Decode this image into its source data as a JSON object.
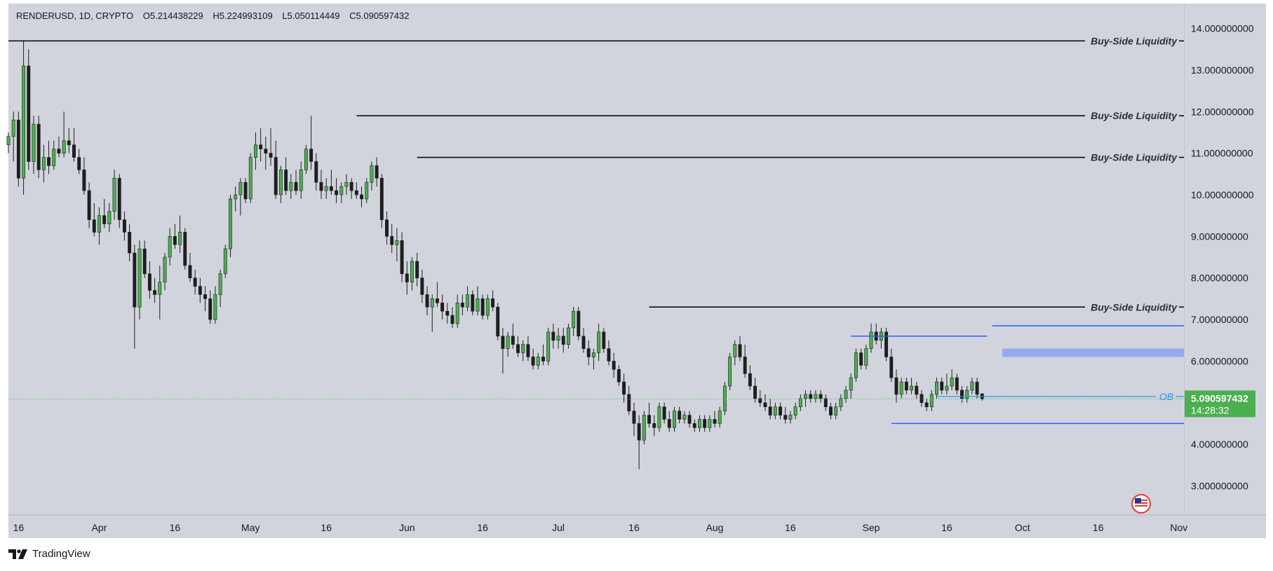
{
  "header": {
    "symbol": "RENDERUSD, 1D, CRYPTO",
    "open": "O5.214438229",
    "high": "H5.224993109",
    "low": "L5.050114449",
    "close": "C5.090597432"
  },
  "price_tag": {
    "price": "5.090597432",
    "countdown": "14:28:32"
  },
  "footer": {
    "brand": "TradingView"
  },
  "colors": {
    "background": "#d1d4dc",
    "up": "#4caf50",
    "down": "#1e1e1e",
    "liquidity": "#000000",
    "range": "#2962ff",
    "ob": "#2196f3",
    "order_block": "#8fa3ef",
    "price_tag": "#4caf50"
  },
  "chart_data": {
    "type": "candlestick",
    "y_axis": {
      "min": 2.3,
      "max": 14.6,
      "ticks": [
        3,
        4,
        5,
        6,
        7,
        8,
        9,
        10,
        11,
        12,
        13,
        14
      ],
      "tick_labels": [
        "3.000000000",
        "4.000000000",
        "5.000000000",
        "6.000000000",
        "7.000000000",
        "8.000000000",
        "9.000000000",
        "10.000000000",
        "11.000000000",
        "12.000000000",
        "13.000000000",
        "14.000000000"
      ]
    },
    "x_axis": {
      "start": "2024-03-14",
      "end": "2024-11-02",
      "ticks": [
        {
          "date": "2024-03-16",
          "label": "16"
        },
        {
          "date": "2024-04-01",
          "label": "Apr"
        },
        {
          "date": "2024-04-16",
          "label": "16"
        },
        {
          "date": "2024-05-01",
          "label": "May"
        },
        {
          "date": "2024-05-16",
          "label": "16"
        },
        {
          "date": "2024-06-01",
          "label": "Jun"
        },
        {
          "date": "2024-06-16",
          "label": "16"
        },
        {
          "date": "2024-07-01",
          "label": "Jul"
        },
        {
          "date": "2024-07-16",
          "label": "16"
        },
        {
          "date": "2024-08-01",
          "label": "Aug"
        },
        {
          "date": "2024-08-16",
          "label": "16"
        },
        {
          "date": "2024-09-01",
          "label": "Sep"
        },
        {
          "date": "2024-09-16",
          "label": "16"
        },
        {
          "date": "2024-10-01",
          "label": "Oct"
        },
        {
          "date": "2024-10-16",
          "label": "16"
        },
        {
          "date": "2024-11-01",
          "label": "Nov"
        }
      ]
    },
    "first_candle_date": "2024-03-14",
    "last_price": 5.090597432,
    "candles": [
      [
        11.2,
        11.5,
        11.0,
        11.4
      ],
      [
        11.4,
        12.0,
        10.8,
        11.8
      ],
      [
        11.8,
        12.0,
        10.2,
        10.4
      ],
      [
        10.4,
        13.7,
        10.0,
        13.1
      ],
      [
        13.1,
        13.5,
        10.6,
        10.8
      ],
      [
        10.8,
        11.9,
        10.5,
        11.7
      ],
      [
        11.7,
        11.9,
        10.4,
        10.6
      ],
      [
        10.6,
        11.2,
        10.3,
        10.9
      ],
      [
        10.9,
        11.3,
        10.5,
        10.7
      ],
      [
        10.7,
        11.3,
        10.6,
        11.1
      ],
      [
        11.1,
        11.4,
        10.9,
        11.0
      ],
      [
        11.0,
        12.0,
        10.9,
        11.3
      ],
      [
        11.3,
        11.6,
        11.0,
        11.2
      ],
      [
        11.2,
        11.6,
        10.8,
        10.9
      ],
      [
        10.9,
        11.1,
        10.5,
        10.6
      ],
      [
        10.6,
        10.9,
        10.0,
        10.1
      ],
      [
        10.1,
        10.3,
        9.2,
        9.4
      ],
      [
        9.4,
        9.8,
        9.0,
        9.1
      ],
      [
        9.1,
        9.7,
        8.8,
        9.5
      ],
      [
        9.5,
        9.9,
        9.2,
        9.3
      ],
      [
        9.3,
        9.8,
        9.1,
        9.6
      ],
      [
        9.6,
        10.6,
        9.4,
        10.4
      ],
      [
        10.4,
        10.5,
        9.2,
        9.4
      ],
      [
        9.4,
        9.6,
        8.9,
        9.1
      ],
      [
        9.1,
        9.3,
        8.4,
        8.6
      ],
      [
        8.6,
        8.8,
        6.3,
        7.3
      ],
      [
        7.3,
        8.9,
        7.0,
        8.7
      ],
      [
        8.7,
        8.9,
        8.0,
        8.1
      ],
      [
        8.1,
        8.4,
        7.5,
        7.7
      ],
      [
        7.7,
        8.0,
        7.4,
        7.6
      ],
      [
        7.6,
        8.3,
        7.0,
        7.9
      ],
      [
        7.9,
        8.6,
        7.7,
        8.5
      ],
      [
        8.5,
        9.2,
        8.3,
        9.0
      ],
      [
        9.0,
        9.3,
        8.7,
        8.8
      ],
      [
        8.8,
        9.5,
        8.6,
        9.1
      ],
      [
        9.1,
        9.2,
        8.2,
        8.3
      ],
      [
        8.3,
        8.6,
        7.9,
        8.0
      ],
      [
        8.0,
        8.2,
        7.6,
        7.8
      ],
      [
        7.8,
        8.0,
        7.4,
        7.6
      ],
      [
        7.6,
        7.8,
        7.2,
        7.5
      ],
      [
        7.5,
        7.7,
        6.9,
        7.0
      ],
      [
        7.0,
        7.8,
        6.9,
        7.6
      ],
      [
        7.6,
        8.2,
        7.3,
        8.1
      ],
      [
        8.1,
        8.8,
        8.0,
        8.7
      ],
      [
        8.7,
        10.0,
        8.5,
        9.9
      ],
      [
        9.9,
        10.2,
        9.6,
        10.0
      ],
      [
        10.0,
        10.4,
        9.5,
        10.3
      ],
      [
        10.3,
        10.4,
        9.8,
        9.9
      ],
      [
        9.9,
        11.0,
        9.8,
        10.9
      ],
      [
        10.9,
        11.5,
        10.6,
        11.2
      ],
      [
        11.2,
        11.6,
        10.8,
        11.1
      ],
      [
        11.1,
        11.4,
        10.6,
        11.0
      ],
      [
        11.0,
        11.6,
        10.7,
        10.9
      ],
      [
        10.9,
        11.3,
        9.9,
        10.0
      ],
      [
        10.0,
        10.7,
        9.8,
        10.6
      ],
      [
        10.6,
        10.9,
        10.0,
        10.1
      ],
      [
        10.1,
        10.5,
        9.9,
        10.3
      ],
      [
        10.3,
        10.6,
        10.0,
        10.1
      ],
      [
        10.1,
        10.8,
        9.9,
        10.6
      ],
      [
        10.6,
        11.2,
        10.5,
        11.1
      ],
      [
        11.1,
        11.9,
        10.6,
        10.8
      ],
      [
        10.8,
        11.0,
        10.1,
        10.3
      ],
      [
        10.3,
        10.6,
        9.9,
        10.1
      ],
      [
        10.1,
        10.4,
        9.9,
        10.2
      ],
      [
        10.2,
        10.6,
        10.0,
        10.1
      ],
      [
        10.1,
        10.4,
        9.8,
        10.0
      ],
      [
        10.0,
        10.3,
        9.8,
        10.2
      ],
      [
        10.2,
        10.5,
        10.0,
        10.3
      ],
      [
        10.3,
        10.4,
        9.9,
        10.1
      ],
      [
        10.1,
        10.3,
        9.9,
        10.0
      ],
      [
        10.0,
        10.2,
        9.7,
        9.9
      ],
      [
        9.9,
        10.4,
        9.8,
        10.3
      ],
      [
        10.3,
        10.8,
        10.1,
        10.7
      ],
      [
        10.7,
        10.9,
        10.2,
        10.4
      ],
      [
        10.4,
        10.5,
        9.2,
        9.4
      ],
      [
        9.4,
        9.6,
        8.8,
        9.0
      ],
      [
        9.0,
        9.3,
        8.6,
        8.8
      ],
      [
        8.8,
        9.2,
        8.4,
        8.9
      ],
      [
        8.9,
        9.1,
        7.9,
        8.1
      ],
      [
        8.1,
        8.4,
        7.6,
        7.9
      ],
      [
        7.9,
        8.5,
        7.7,
        8.4
      ],
      [
        8.4,
        8.6,
        7.8,
        8.0
      ],
      [
        8.0,
        8.2,
        7.4,
        7.6
      ],
      [
        7.6,
        7.8,
        7.1,
        7.3
      ],
      [
        7.3,
        7.6,
        6.7,
        7.5
      ],
      [
        7.5,
        7.9,
        7.3,
        7.4
      ],
      [
        7.4,
        7.6,
        7.0,
        7.2
      ],
      [
        7.2,
        7.4,
        6.9,
        7.1
      ],
      [
        7.1,
        7.3,
        6.8,
        6.9
      ],
      [
        6.9,
        7.6,
        6.8,
        7.4
      ],
      [
        7.4,
        7.6,
        7.1,
        7.3
      ],
      [
        7.3,
        7.8,
        7.2,
        7.6
      ],
      [
        7.6,
        7.7,
        7.1,
        7.2
      ],
      [
        7.2,
        7.8,
        7.1,
        7.5
      ],
      [
        7.5,
        7.6,
        7.0,
        7.1
      ],
      [
        7.1,
        7.6,
        7.0,
        7.5
      ],
      [
        7.5,
        7.7,
        7.2,
        7.3
      ],
      [
        7.3,
        7.4,
        6.5,
        6.6
      ],
      [
        6.6,
        6.8,
        5.7,
        6.3
      ],
      [
        6.3,
        6.7,
        6.1,
        6.6
      ],
      [
        6.6,
        6.9,
        6.3,
        6.4
      ],
      [
        6.4,
        6.6,
        6.1,
        6.2
      ],
      [
        6.2,
        6.5,
        6.0,
        6.4
      ],
      [
        6.4,
        6.6,
        6.0,
        6.1
      ],
      [
        6.1,
        6.3,
        5.8,
        5.9
      ],
      [
        5.9,
        6.2,
        5.8,
        6.1
      ],
      [
        6.1,
        6.4,
        5.9,
        6.0
      ],
      [
        6.0,
        6.8,
        5.9,
        6.7
      ],
      [
        6.7,
        6.9,
        6.3,
        6.5
      ],
      [
        6.5,
        6.8,
        6.3,
        6.6
      ],
      [
        6.6,
        6.8,
        6.2,
        6.4
      ],
      [
        6.4,
        6.9,
        6.3,
        6.8
      ],
      [
        6.8,
        7.3,
        6.6,
        7.2
      ],
      [
        7.2,
        7.3,
        6.5,
        6.6
      ],
      [
        6.6,
        6.8,
        6.2,
        6.3
      ],
      [
        6.3,
        6.5,
        5.9,
        6.1
      ],
      [
        6.1,
        6.3,
        5.8,
        6.2
      ],
      [
        6.2,
        6.9,
        6.0,
        6.7
      ],
      [
        6.7,
        6.8,
        6.2,
        6.3
      ],
      [
        6.3,
        6.5,
        5.9,
        6.0
      ],
      [
        6.0,
        6.2,
        5.6,
        5.8
      ],
      [
        5.8,
        5.9,
        5.4,
        5.5
      ],
      [
        5.5,
        5.7,
        5.0,
        5.2
      ],
      [
        5.2,
        5.4,
        4.7,
        4.8
      ],
      [
        4.8,
        5.0,
        4.2,
        4.5
      ],
      [
        4.5,
        4.7,
        3.4,
        4.1
      ],
      [
        4.1,
        4.8,
        4.0,
        4.7
      ],
      [
        4.7,
        5.0,
        4.4,
        4.5
      ],
      [
        4.5,
        4.7,
        4.2,
        4.4
      ],
      [
        4.4,
        5.0,
        4.3,
        4.9
      ],
      [
        4.9,
        5.0,
        4.5,
        4.6
      ],
      [
        4.6,
        4.8,
        4.3,
        4.4
      ],
      [
        4.4,
        4.9,
        4.3,
        4.8
      ],
      [
        4.8,
        4.9,
        4.5,
        4.6
      ],
      [
        4.6,
        4.8,
        4.5,
        4.7
      ],
      [
        4.7,
        4.8,
        4.4,
        4.5
      ],
      [
        4.5,
        4.6,
        4.3,
        4.4
      ],
      [
        4.4,
        4.7,
        4.3,
        4.6
      ],
      [
        4.6,
        4.7,
        4.3,
        4.4
      ],
      [
        4.4,
        4.7,
        4.3,
        4.6
      ],
      [
        4.6,
        4.8,
        4.4,
        4.5
      ],
      [
        4.5,
        4.9,
        4.4,
        4.8
      ],
      [
        4.8,
        5.5,
        4.7,
        5.4
      ],
      [
        5.4,
        6.2,
        5.3,
        6.1
      ],
      [
        6.1,
        6.5,
        5.9,
        6.4
      ],
      [
        6.4,
        6.6,
        6.0,
        6.1
      ],
      [
        6.1,
        6.4,
        5.6,
        5.7
      ],
      [
        5.7,
        5.9,
        5.3,
        5.4
      ],
      [
        5.4,
        5.6,
        5.0,
        5.1
      ],
      [
        5.1,
        5.3,
        4.9,
        5.0
      ],
      [
        5.0,
        5.2,
        4.8,
        4.9
      ],
      [
        4.9,
        5.1,
        4.6,
        4.7
      ],
      [
        4.7,
        5.0,
        4.6,
        4.9
      ],
      [
        4.9,
        5.0,
        4.6,
        4.7
      ],
      [
        4.7,
        4.9,
        4.5,
        4.6
      ],
      [
        4.6,
        4.8,
        4.5,
        4.7
      ],
      [
        4.7,
        5.0,
        4.6,
        4.9
      ],
      [
        4.9,
        5.2,
        4.8,
        5.1
      ],
      [
        5.1,
        5.3,
        4.9,
        5.2
      ],
      [
        5.2,
        5.3,
        5.0,
        5.1
      ],
      [
        5.1,
        5.3,
        5.0,
        5.2
      ],
      [
        5.2,
        5.3,
        5.0,
        5.1
      ],
      [
        5.1,
        5.2,
        4.8,
        4.9
      ],
      [
        4.9,
        5.0,
        4.6,
        4.7
      ],
      [
        4.7,
        5.0,
        4.6,
        4.9
      ],
      [
        4.9,
        5.2,
        4.8,
        5.1
      ],
      [
        5.1,
        5.4,
        5.0,
        5.3
      ],
      [
        5.3,
        5.7,
        5.1,
        5.6
      ],
      [
        5.6,
        6.3,
        5.5,
        6.2
      ],
      [
        6.2,
        6.3,
        5.8,
        5.9
      ],
      [
        5.9,
        6.4,
        5.8,
        6.3
      ],
      [
        6.3,
        6.9,
        6.2,
        6.7
      ],
      [
        6.7,
        6.9,
        6.4,
        6.5
      ],
      [
        6.5,
        6.8,
        6.3,
        6.7
      ],
      [
        6.7,
        6.8,
        6.0,
        6.1
      ],
      [
        6.1,
        6.3,
        5.5,
        5.6
      ],
      [
        5.6,
        5.8,
        5.0,
        5.2
      ],
      [
        5.2,
        5.6,
        5.1,
        5.5
      ],
      [
        5.5,
        5.6,
        5.2,
        5.3
      ],
      [
        5.3,
        5.6,
        5.2,
        5.4
      ],
      [
        5.4,
        5.5,
        5.1,
        5.2
      ],
      [
        5.2,
        5.3,
        4.9,
        5.0
      ],
      [
        5.0,
        5.1,
        4.8,
        4.9
      ],
      [
        4.9,
        5.3,
        4.8,
        5.2
      ],
      [
        5.2,
        5.6,
        5.1,
        5.5
      ],
      [
        5.5,
        5.6,
        5.2,
        5.3
      ],
      [
        5.3,
        5.7,
        5.2,
        5.4
      ],
      [
        5.4,
        5.8,
        5.3,
        5.6
      ],
      [
        5.6,
        5.7,
        5.2,
        5.3
      ],
      [
        5.3,
        5.4,
        5.0,
        5.1
      ],
      [
        5.1,
        5.4,
        5.0,
        5.3
      ],
      [
        5.3,
        5.6,
        5.2,
        5.5
      ],
      [
        5.5,
        5.6,
        5.1,
        5.2
      ],
      [
        5.214438229,
        5.224993109,
        5.050114449,
        5.090597432
      ]
    ],
    "annotations": [
      {
        "label": "Buy-Side Liquidity",
        "price": 13.7,
        "from": "2024-03-14"
      },
      {
        "label": "Buy-Side Liquidity",
        "price": 11.9,
        "from": "2024-05-22"
      },
      {
        "label": "Buy-Side Liquidity",
        "price": 10.9,
        "from": "2024-06-03"
      },
      {
        "label": "Buy-Side Liquidity",
        "price": 7.3,
        "from": "2024-07-19"
      }
    ],
    "range_lines": [
      {
        "price": 6.6,
        "from": "2024-08-28",
        "to": "2024-09-24"
      },
      {
        "price": 6.85,
        "from": "2024-09-25",
        "to": "2024-11-02"
      },
      {
        "price": 4.5,
        "from": "2024-09-05",
        "to": "2024-11-02"
      }
    ],
    "ob_line": {
      "label": "OB",
      "price": 5.15,
      "from": "2024-09-14",
      "to": "2024-10-24"
    },
    "order_block": {
      "low": 6.1,
      "high": 6.3,
      "from": "2024-09-27",
      "to": "2024-11-02"
    }
  }
}
